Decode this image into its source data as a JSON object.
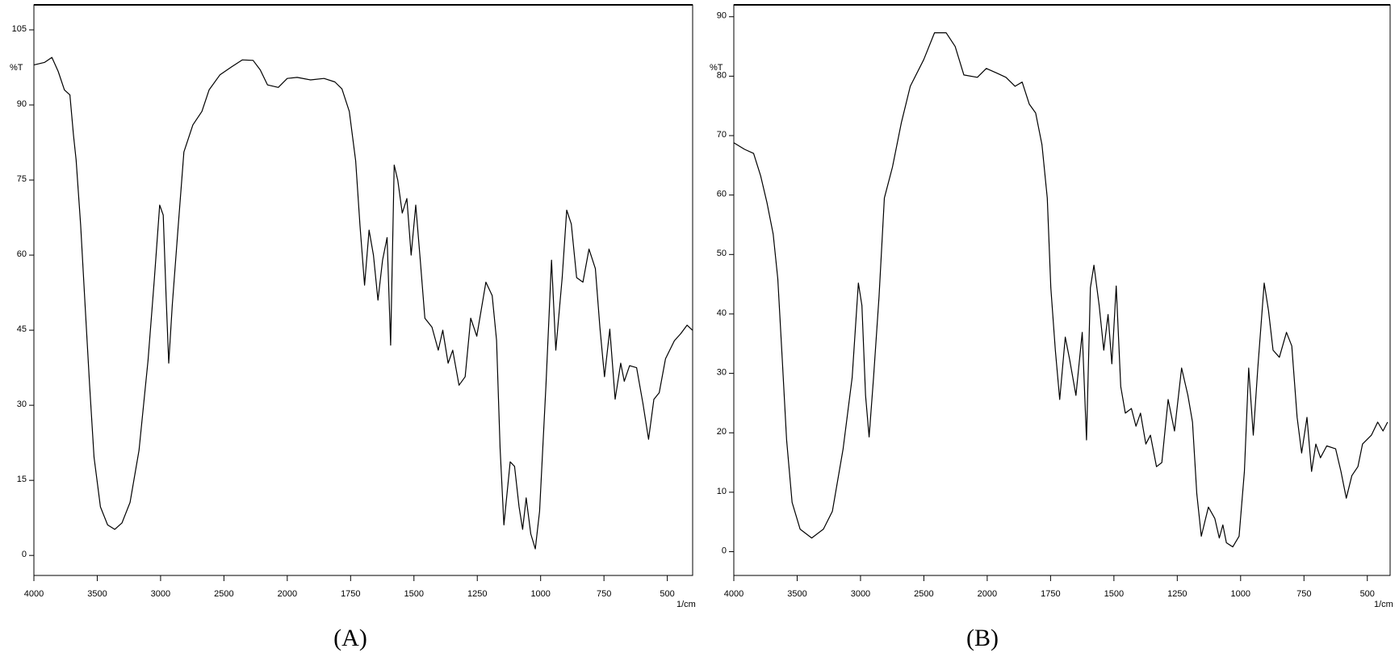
{
  "chart_data": [
    {
      "type": "line",
      "caption": "(A)",
      "x_label": "1/cm",
      "y_label": "%T",
      "color": "#000000",
      "xlim": [
        4000,
        400
      ],
      "ylim": [
        -4,
        110
      ],
      "xticks": [
        4000,
        3500,
        3000,
        2500,
        2000,
        1750,
        1500,
        1250,
        1000,
        750,
        500
      ],
      "yticks": [
        0,
        15,
        30,
        45,
        60,
        75,
        90,
        105
      ],
      "x": [
        4000,
        3915,
        3858,
        3808,
        3759,
        3716,
        3688,
        3667,
        3631,
        3596,
        3560,
        3525,
        3475,
        3418,
        3362,
        3305,
        3241,
        3170,
        3099,
        3050,
        3007,
        2979,
        2957,
        2936,
        2908,
        2865,
        2816,
        2745,
        2674,
        2617,
        2532,
        2440,
        2355,
        2270,
        2213,
        2156,
        2071,
        2000,
        1961,
        1908,
        1855,
        1812,
        1784,
        1755,
        1730,
        1713,
        1695,
        1677,
        1660,
        1642,
        1624,
        1606,
        1592,
        1578,
        1564,
        1546,
        1528,
        1511,
        1493,
        1475,
        1457,
        1429,
        1404,
        1386,
        1365,
        1347,
        1322,
        1298,
        1276,
        1252,
        1216,
        1191,
        1174,
        1160,
        1145,
        1120,
        1103,
        1085,
        1071,
        1057,
        1039,
        1021,
        1004,
        979,
        957,
        940,
        915,
        897,
        879,
        858,
        833,
        809,
        784,
        766,
        748,
        727,
        706,
        684,
        670,
        649,
        621,
        596,
        574,
        553,
        532,
        507,
        472,
        447,
        422,
        401
      ],
      "values": [
        98,
        98.5,
        99.5,
        96.7,
        93,
        92,
        84,
        79,
        66,
        50,
        34,
        19.6,
        9.7,
        6.1,
        5.2,
        6.5,
        10.6,
        21,
        39,
        55,
        70,
        68,
        52,
        38.4,
        50,
        64.4,
        80.6,
        86,
        88.7,
        93,
        96,
        97.6,
        99,
        98.9,
        97,
        94,
        93.5,
        95.3,
        95.5,
        95,
        95.3,
        94.6,
        93.2,
        88.7,
        78.8,
        66,
        54,
        65,
        60,
        51,
        59,
        63.5,
        42,
        78,
        75,
        68.4,
        71.3,
        60,
        70,
        59,
        47.4,
        45.6,
        41,
        45,
        38.4,
        41,
        34,
        35.7,
        47.4,
        43.8,
        54.6,
        51.9,
        43,
        21.4,
        6.1,
        18.7,
        17.8,
        9.7,
        5.2,
        11.5,
        4.3,
        1.3,
        8.8,
        34,
        59,
        41,
        55.5,
        69,
        66.2,
        55.5,
        54.6,
        61.2,
        57.3,
        45.6,
        35.7,
        45.2,
        31.2,
        38.4,
        34.8,
        37.9,
        37.5,
        30.3,
        23.2,
        31.2,
        32.5,
        39.3,
        42.9,
        44.3,
        46,
        45
      ]
    },
    {
      "type": "line",
      "caption": "(B)",
      "x_label": "1/cm",
      "y_label": "%T",
      "color": "#000000",
      "xlim": [
        4000,
        410
      ],
      "ylim": [
        -4,
        92
      ],
      "xticks": [
        4000,
        3500,
        3000,
        2500,
        2000,
        1750,
        1500,
        1250,
        1000,
        750,
        500
      ],
      "yticks": [
        0,
        10,
        20,
        30,
        40,
        50,
        60,
        70,
        80,
        90
      ],
      "x": [
        4000,
        3915,
        3844,
        3788,
        3738,
        3689,
        3653,
        3618,
        3583,
        3540,
        3477,
        3385,
        3293,
        3222,
        3137,
        3066,
        3017,
        2989,
        2960,
        2932,
        2897,
        2854,
        2812,
        2748,
        2677,
        2607,
        2501,
        2416,
        2324,
        2253,
        2184,
        2078,
        2007,
        1961,
        1926,
        1890,
        1862,
        1834,
        1809,
        1784,
        1763,
        1749,
        1731,
        1714,
        1692,
        1675,
        1650,
        1625,
        1608,
        1593,
        1579,
        1558,
        1540,
        1523,
        1508,
        1491,
        1473,
        1455,
        1431,
        1413,
        1395,
        1374,
        1356,
        1332,
        1311,
        1286,
        1261,
        1233,
        1208,
        1190,
        1173,
        1155,
        1127,
        1102,
        1084,
        1070,
        1056,
        1031,
        1006,
        985,
        968,
        950,
        932,
        907,
        890,
        872,
        847,
        819,
        798,
        777,
        759,
        738,
        720,
        703,
        685,
        660,
        625,
        604,
        583,
        561,
        537,
        519,
        484,
        459,
        438,
        420
      ],
      "values": [
        68.8,
        67.7,
        67,
        63.2,
        58.7,
        53.4,
        45.9,
        32.4,
        18.8,
        8.3,
        3.8,
        2.3,
        3.8,
        6.8,
        17.3,
        29.3,
        45.2,
        41.4,
        26.3,
        19.3,
        29.3,
        42.9,
        59.5,
        64.7,
        72.2,
        78.3,
        82.8,
        87.3,
        87.3,
        85,
        80.2,
        79.8,
        81.3,
        80.5,
        79.8,
        78.3,
        79,
        75.3,
        73.8,
        68.5,
        59.5,
        44.4,
        33.9,
        25.6,
        36.1,
        32.4,
        26.3,
        36.9,
        18.8,
        44.4,
        48.2,
        41.4,
        33.9,
        39.9,
        31.6,
        44.7,
        27.8,
        23.3,
        24.1,
        21.1,
        23.3,
        18.1,
        19.6,
        14.3,
        15,
        25.6,
        20.3,
        30.9,
        26.3,
        21.8,
        9.8,
        2.6,
        7.5,
        5.6,
        2.3,
        4.5,
        1.5,
        0.8,
        2.6,
        13.5,
        30.9,
        19.6,
        30.9,
        45.2,
        40.6,
        33.9,
        32.7,
        36.9,
        34.6,
        22.6,
        16.6,
        22.6,
        13.5,
        18.1,
        15.8,
        17.8,
        17.3,
        13.5,
        9,
        12.8,
        14.3,
        18.1,
        19.6,
        21.8,
        20.3,
        21.8
      ]
    }
  ]
}
